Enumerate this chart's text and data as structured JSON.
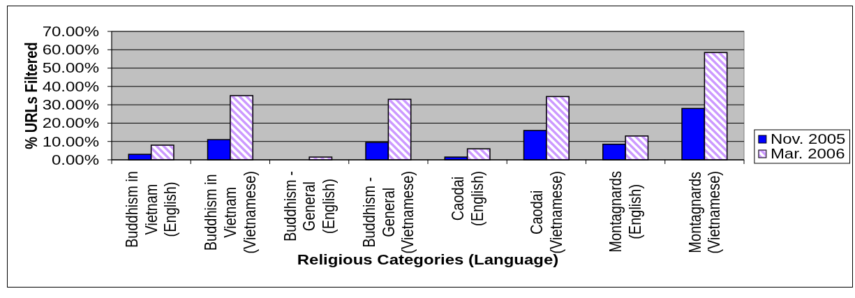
{
  "chart_data": {
    "type": "bar",
    "xlabel": "Religious Categories (Language)",
    "ylabel": "% URLs Filtered",
    "categories": [
      "Buddhism in Vietnam (English)",
      "Buddhism in Vietnam (Vietnamese)",
      "Buddhism - General (English)",
      "Buddhism - General (Vietnamese)",
      "Caodai (English)",
      "Caodai (Vietnamese)",
      "Montagnards (English)",
      "Montagnards (Vietnamese)"
    ],
    "series": [
      {
        "name": "Nov. 2005",
        "color": "#0000ff",
        "values": [
          3,
          11,
          0,
          9.5,
          1.5,
          16,
          8.5,
          28
        ]
      },
      {
        "name": "Mar. 2006",
        "color": "#cc99ff",
        "values": [
          8,
          35,
          1.5,
          33,
          6,
          34.5,
          13,
          58.5
        ]
      }
    ],
    "ylim": [
      0,
      70
    ],
    "yticks": [
      {
        "value": 0,
        "label": "0.00%"
      },
      {
        "value": 10,
        "label": "10.00%"
      },
      {
        "value": 20,
        "label": "20.00%"
      },
      {
        "value": 30,
        "label": "30.00%"
      },
      {
        "value": 40,
        "label": "40.00%"
      },
      {
        "value": 50,
        "label": "50.00%"
      },
      {
        "value": 60,
        "label": "60.00%"
      },
      {
        "value": 70,
        "label": "70.00%"
      }
    ],
    "grid": "y",
    "legend": "right"
  }
}
